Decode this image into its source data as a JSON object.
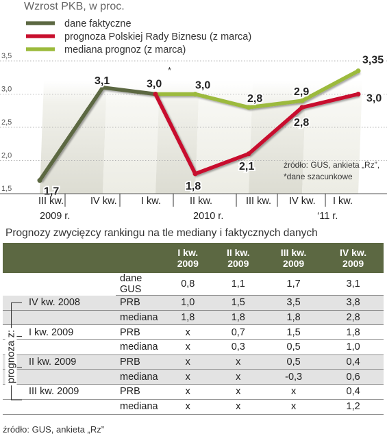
{
  "chart_data": {
    "type": "line",
    "title": "Wzrost PKB, w proc.",
    "y_ticks": [
      "3,5",
      "3,0",
      "2,5",
      "2,0",
      "1,5"
    ],
    "ylim": [
      1.5,
      3.5
    ],
    "x_ticks": [
      "III kw.",
      "IV kw.",
      "I kw.",
      "II kw.",
      "III kw.",
      "IV kw.",
      "I kw."
    ],
    "year_labels": [
      "2009 r.",
      "2010 r.",
      "‘11 r."
    ],
    "series": [
      {
        "name": "dane faktyczne",
        "color": "#5c6842",
        "points": [
          {
            "q": "III kw. 2009",
            "value": 1.7,
            "label": "1,7"
          },
          {
            "q": "IV kw. 2009",
            "value": 3.1,
            "label": "3,1"
          },
          {
            "q": "I kw. 2010",
            "value": 3.0,
            "label": "3,0"
          }
        ]
      },
      {
        "name": "prognoza Polskiej Rady Biznesu (z marca)",
        "color": "#c8102e",
        "points": [
          {
            "q": "I kw. 2010",
            "value": 3.0,
            "label": ""
          },
          {
            "q": "II kw. 2010",
            "value": 1.8,
            "label": "1,8"
          },
          {
            "q": "III kw. 2010",
            "value": 2.1,
            "label": "2,1"
          },
          {
            "q": "IV kw. 2010",
            "value": 2.8,
            "label": "2,8"
          },
          {
            "q": "I kw. 2011",
            "value": 3.0,
            "label": "3,0"
          }
        ]
      },
      {
        "name": "mediana prognoz (z marca)",
        "color": "#9cba3c",
        "points": [
          {
            "q": "I kw. 2010",
            "value": 3.0,
            "label": ""
          },
          {
            "q": "II kw. 2010",
            "value": 3.0,
            "label": "3,0"
          },
          {
            "q": "III kw. 2010",
            "value": 2.8,
            "label": "2,8"
          },
          {
            "q": "IV kw. 2010",
            "value": 2.9,
            "label": "2,9"
          },
          {
            "q": "I kw. 2011",
            "value": 3.35,
            "label": "3,35"
          }
        ]
      }
    ],
    "annotations": {
      "estimate_mark": "*",
      "source": "źródło: GUS, ankieta „Rz”,",
      "note": "*dane szacunkowe"
    }
  },
  "table": {
    "title": "Prognozy zwycięzcy rankingu na tle mediany i faktycznych danych",
    "headers": [
      {
        "line1": "I kw.",
        "line2": "2009"
      },
      {
        "line1": "II kw.",
        "line2": "2009"
      },
      {
        "line1": "III kw.",
        "line2": "2009"
      },
      {
        "line1": "IV kw.",
        "line2": "2009"
      }
    ],
    "vertical_label": "prognoza z:",
    "rows": [
      {
        "source": "",
        "type": "dane GUS",
        "values": [
          "0,8",
          "1,1",
          "1,7",
          "3,1"
        ]
      },
      {
        "source": "IV kw. 2008",
        "type": "PRB",
        "values": [
          "1,0",
          "1,5",
          "3,5",
          "3,8"
        ]
      },
      {
        "source": "",
        "type": "mediana",
        "values": [
          "1,8",
          "1,8",
          "1,8",
          "2,8"
        ]
      },
      {
        "source": "I kw. 2009",
        "type": "PRB",
        "values": [
          "x",
          "0,7",
          "1,5",
          "1,8"
        ]
      },
      {
        "source": "",
        "type": "mediana",
        "values": [
          "x",
          "0,3",
          "0,5",
          "1,0"
        ]
      },
      {
        "source": "II kw. 2009",
        "type": "PRB",
        "values": [
          "x",
          "x",
          "0,5",
          "0,4"
        ]
      },
      {
        "source": "",
        "type": "mediana",
        "values": [
          "x",
          "x",
          "-0,3",
          "0,6"
        ]
      },
      {
        "source": "III kw. 2009",
        "type": "PRB",
        "values": [
          "x",
          "x",
          "x",
          "0,4"
        ]
      },
      {
        "source": "",
        "type": "mediana",
        "values": [
          "x",
          "x",
          "x",
          "1,2"
        ]
      }
    ],
    "footer": "źródło: GUS, ankieta „Rz”"
  }
}
